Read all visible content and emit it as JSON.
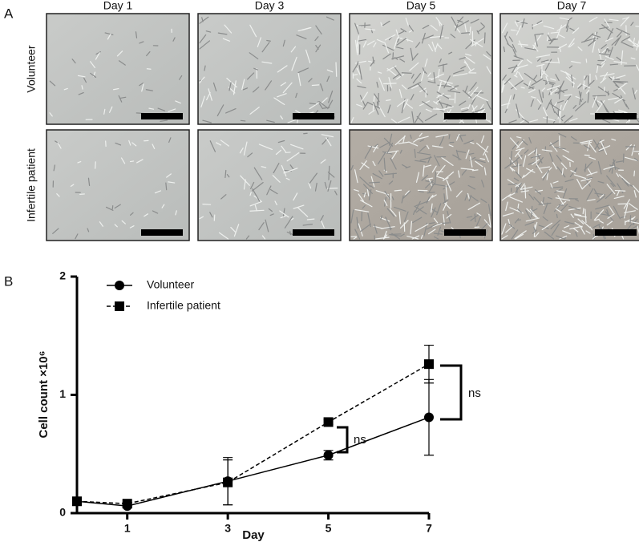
{
  "panel_a": {
    "label": "A",
    "columns": [
      "Day 1",
      "Day 3",
      "Day 5",
      "Day 7"
    ],
    "rows": [
      "Volunteer",
      "Infertile patient"
    ]
  },
  "chart_data": {
    "type": "line",
    "panel_label": "B",
    "x_label": "Day",
    "y_label": "Cell count ×10⁶",
    "x": [
      0,
      1,
      3,
      5,
      7
    ],
    "xlim": [
      0,
      7
    ],
    "xticks": [
      1,
      3,
      5,
      7
    ],
    "ylim": [
      0,
      2
    ],
    "yticks": [
      0,
      1,
      2
    ],
    "series": [
      {
        "name": "Volunteer",
        "color": "#000000",
        "marker": "circle",
        "dashed": false,
        "values": [
          0.1,
          0.06,
          0.27,
          0.49,
          0.81
        ],
        "errors": [
          0,
          0.01,
          0.2,
          0.04,
          0.32
        ]
      },
      {
        "name": "Infertile patient",
        "color": "#000000",
        "marker": "square",
        "dashed": true,
        "values": [
          0.1,
          0.08,
          0.26,
          0.77,
          1.26
        ],
        "errors": [
          0,
          0.01,
          0.19,
          0.02,
          0.16
        ]
      }
    ],
    "annotations": [
      "ns",
      "ns"
    ]
  }
}
